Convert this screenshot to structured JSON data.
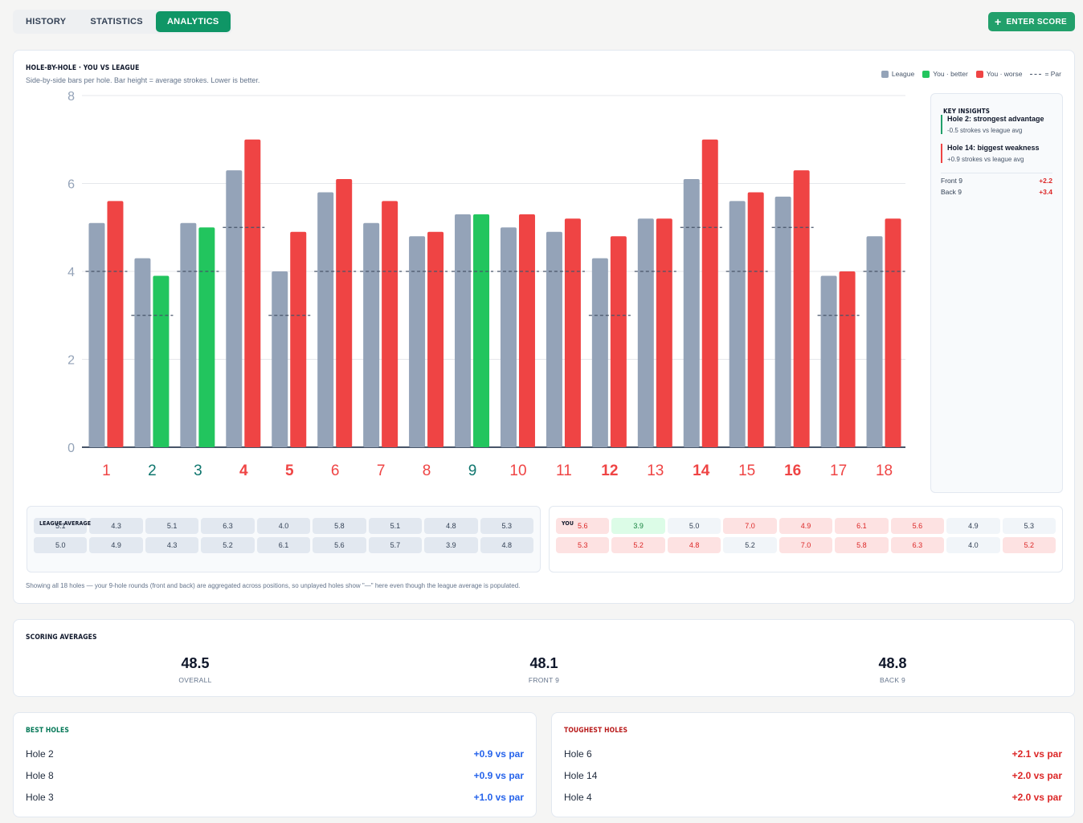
{
  "tabs": [
    {
      "label": "HISTORY",
      "active": false
    },
    {
      "label": "STATISTICS",
      "active": false
    },
    {
      "label": "ANALYTICS",
      "active": true
    }
  ],
  "enter_score_label": "ENTER SCORE",
  "main": {
    "title": "HOLE-BY-HOLE · YOU VS LEAGUE",
    "subtitle": "Side-by-side bars per hole. Bar height = average strokes. Lower is better.",
    "legend": {
      "league": "League",
      "you_better": "You · better",
      "you_worse": "You · worse",
      "par": "= Par"
    },
    "footnote": "Showing all 18 holes — your 9-hole rounds (front and back) are aggregated across positions, so unplayed holes show \"—\" here even though the league average is populated."
  },
  "colors": {
    "league": "#94a3b8",
    "better": "#22c55e",
    "worse": "#ef4444",
    "good_label": "#0f766e",
    "bad_label": "#ef4444",
    "accent": "#0f9666"
  },
  "chart_data": {
    "type": "bar",
    "categories": [
      "1",
      "2",
      "3",
      "4",
      "5",
      "6",
      "7",
      "8",
      "9",
      "10",
      "11",
      "12",
      "13",
      "14",
      "15",
      "16",
      "17",
      "18"
    ],
    "series": [
      {
        "name": "League",
        "values": [
          5.1,
          4.3,
          5.1,
          6.3,
          4.0,
          5.8,
          5.1,
          4.8,
          5.3,
          5.0,
          4.9,
          4.3,
          5.2,
          6.1,
          5.6,
          5.7,
          3.9,
          4.8
        ]
      },
      {
        "name": "You",
        "values": [
          5.6,
          3.9,
          5.0,
          7.0,
          4.9,
          6.1,
          5.6,
          4.9,
          5.3,
          5.3,
          5.2,
          4.8,
          5.2,
          7.0,
          5.8,
          6.3,
          4.0,
          5.2
        ]
      }
    ],
    "par": [
      4,
      3,
      4,
      5,
      3,
      4,
      4,
      4,
      4,
      4,
      4,
      3,
      4,
      5,
      4,
      5,
      3,
      4
    ],
    "bold_labels": [
      "4",
      "5",
      "12",
      "14",
      "16"
    ],
    "good_holes": [
      "2",
      "3",
      "9"
    ],
    "ylim": [
      0,
      8
    ],
    "yticks": [
      0,
      2,
      4,
      6,
      8
    ],
    "grid": true
  },
  "insights": {
    "title": "KEY INSIGHTS",
    "items": [
      {
        "heading": "Hole 2: strongest advantage",
        "detail": "-0.5 strokes vs league avg"
      },
      {
        "heading": "Hole 14: biggest weakness",
        "detail": "+0.9 strokes vs league avg"
      }
    ],
    "front_label": "Front 9",
    "front_value": "+2.2",
    "back_label": "Back 9",
    "back_value": "+3.4"
  },
  "league_table": {
    "title": "LEAGUE AVERAGE",
    "front": [
      "5.1",
      "4.3",
      "5.1",
      "6.3",
      "4.0",
      "5.8",
      "5.1",
      "4.8",
      "5.3"
    ],
    "back": [
      "5.0",
      "4.9",
      "4.3",
      "5.2",
      "6.1",
      "5.6",
      "5.7",
      "3.9",
      "4.8"
    ]
  },
  "you_table": {
    "title": "YOU",
    "front": [
      "5.6",
      "3.9",
      "5.0",
      "7.0",
      "4.9",
      "6.1",
      "5.6",
      "4.9",
      "5.3"
    ],
    "back": [
      "5.3",
      "5.2",
      "4.8",
      "5.2",
      "7.0",
      "5.8",
      "6.3",
      "4.0",
      "5.2"
    ],
    "front_status": [
      "bad",
      "good",
      "neutral",
      "bad",
      "bad",
      "bad",
      "bad",
      "neutral",
      "neutral"
    ],
    "back_status": [
      "bad",
      "bad",
      "bad",
      "neutral",
      "bad",
      "bad",
      "bad",
      "neutral",
      "bad"
    ]
  },
  "scoring": {
    "title": "SCORING AVERAGES",
    "overall_value": "48.5",
    "overall_label": "OVERALL",
    "front_value": "48.1",
    "front_label": "FRONT 9",
    "back_value": "48.8",
    "back_label": "BACK 9"
  },
  "best": {
    "title": "BEST HOLES",
    "rows": [
      {
        "hole": "Hole 2",
        "value": "+0.9 vs par"
      },
      {
        "hole": "Hole 8",
        "value": "+0.9 vs par"
      },
      {
        "hole": "Hole 3",
        "value": "+1.0 vs par"
      }
    ]
  },
  "toughest": {
    "title": "TOUGHEST HOLES",
    "rows": [
      {
        "hole": "Hole 6",
        "value": "+2.1 vs par"
      },
      {
        "hole": "Hole 14",
        "value": "+2.0 vs par"
      },
      {
        "hole": "Hole 4",
        "value": "+2.0 vs par"
      }
    ]
  }
}
